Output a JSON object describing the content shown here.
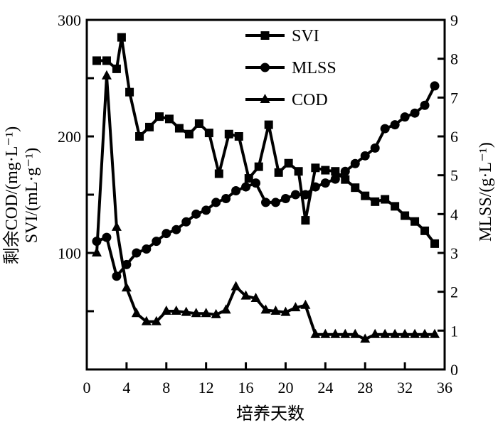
{
  "chart_data": {
    "type": "line",
    "title": "",
    "xlabel": "培养天数",
    "ylabel_left_line1": "剩余COD/(mg·L⁻¹)",
    "ylabel_left_line2": "SVI/(mL·g⁻¹)",
    "ylabel_right": "MLSS/(g·L⁻¹)",
    "xlim": [
      0,
      36
    ],
    "ylim_left": [
      0,
      300
    ],
    "ylim_right": [
      0,
      9
    ],
    "x_ticks": [
      0,
      4,
      8,
      12,
      16,
      20,
      24,
      28,
      32,
      36
    ],
    "y_left_ticks": [
      100,
      200,
      300
    ],
    "y_right_ticks": [
      0,
      1,
      2,
      3,
      4,
      5,
      6,
      7,
      8,
      9
    ],
    "grid": false,
    "legend_position": "top-center",
    "series": [
      {
        "name": "SVI",
        "axis": "left",
        "marker": "square",
        "x": [
          1,
          2,
          3,
          3.5,
          4.3,
          5.3,
          6.3,
          7.3,
          8.3,
          9.3,
          10.3,
          11.3,
          12.3,
          13.3,
          14.3,
          15.3,
          16.3,
          17.3,
          18.3,
          19.3,
          20.3,
          21.3,
          22,
          23,
          24,
          25,
          26,
          27,
          28,
          29,
          30,
          31,
          32,
          33,
          34,
          35
        ],
        "values": [
          265,
          265,
          258,
          285,
          238,
          200,
          208,
          217,
          215,
          207,
          202,
          211,
          203,
          168,
          202,
          200,
          164,
          174,
          210,
          169,
          177,
          170,
          128,
          173,
          171,
          170,
          163,
          156,
          149,
          144,
          146,
          140,
          132,
          127,
          119,
          108
        ]
      },
      {
        "name": "MLSS",
        "axis": "right",
        "marker": "circle",
        "x": [
          1,
          2,
          3,
          4,
          5,
          6,
          7,
          8,
          9,
          10,
          11,
          12,
          13,
          14,
          15,
          16,
          17,
          18,
          19,
          20,
          21,
          22,
          23,
          24,
          25,
          26,
          27,
          28,
          29,
          30,
          31,
          32,
          33,
          34,
          35
        ],
        "values": [
          3.3,
          3.4,
          2.4,
          2.7,
          3.0,
          3.1,
          3.3,
          3.5,
          3.6,
          3.8,
          4.0,
          4.1,
          4.3,
          4.4,
          4.6,
          4.7,
          4.8,
          4.3,
          4.3,
          4.4,
          4.5,
          4.5,
          4.7,
          4.8,
          4.9,
          5.1,
          5.3,
          5.5,
          5.7,
          6.2,
          6.3,
          6.5,
          6.6,
          6.8,
          7.3
        ]
      },
      {
        "name": "COD",
        "axis": "left",
        "marker": "triangle",
        "x": [
          1,
          2,
          3,
          4,
          5,
          6,
          7,
          8,
          9,
          10,
          11,
          12,
          13,
          14,
          15,
          16,
          17,
          18,
          19,
          20,
          21,
          22,
          23,
          24,
          25,
          26,
          27,
          28,
          29,
          30,
          31,
          32,
          33,
          34,
          35
        ],
        "values": [
          100,
          252,
          122,
          70,
          48,
          41,
          41,
          50,
          50,
          49,
          48,
          48,
          47,
          51,
          71,
          63,
          61,
          51,
          50,
          49,
          53,
          55,
          30,
          30,
          30,
          30,
          30,
          26,
          30,
          30,
          30,
          30,
          30,
          30,
          30
        ]
      }
    ]
  }
}
